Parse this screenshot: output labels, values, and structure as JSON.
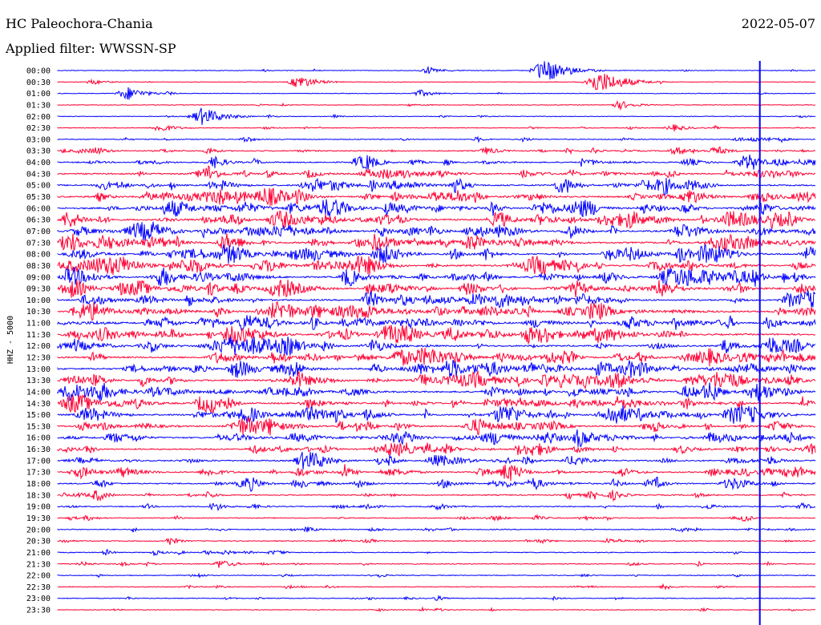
{
  "header": {
    "station": "HC Paleochora-Chania",
    "date": "2022-05-07",
    "filter": "Applied filter: WWSSN-SP"
  },
  "chart_data": {
    "type": "line",
    "title": "",
    "xlabel": "",
    "ylabel": "HHZ - 5000",
    "colors": [
      "#0000ff",
      "#ff0033"
    ],
    "rows": [
      "00:00",
      "00:30",
      "01:00",
      "01:30",
      "02:00",
      "02:30",
      "03:00",
      "03:30",
      "04:00",
      "04:30",
      "05:00",
      "05:30",
      "06:00",
      "06:30",
      "07:00",
      "07:30",
      "08:00",
      "08:30",
      "09:00",
      "09:30",
      "10:00",
      "10:30",
      "11:00",
      "11:30",
      "12:00",
      "12:30",
      "13:00",
      "13:30",
      "14:00",
      "14:30",
      "15:00",
      "15:30",
      "16:00",
      "16:30",
      "17:00",
      "17:30",
      "18:00",
      "18:30",
      "19:00",
      "19:30",
      "20:00",
      "20:30",
      "21:00",
      "21:30",
      "22:00",
      "22:30",
      "23:00",
      "23:30"
    ],
    "noise_level": [
      0.1,
      0.1,
      0.1,
      0.1,
      0.15,
      0.2,
      0.3,
      0.5,
      0.6,
      0.7,
      0.8,
      0.9,
      0.9,
      0.9,
      0.9,
      0.9,
      0.9,
      0.9,
      0.9,
      0.9,
      0.9,
      0.9,
      0.9,
      0.9,
      0.9,
      0.9,
      0.9,
      0.9,
      0.9,
      0.9,
      0.9,
      0.8,
      0.8,
      0.7,
      0.7,
      0.7,
      0.6,
      0.5,
      0.4,
      0.35,
      0.35,
      0.3,
      0.3,
      0.3,
      0.25,
      0.25,
      0.25,
      0.2
    ],
    "events": [
      {
        "row": 0,
        "minute": 19.4,
        "amp": 14
      },
      {
        "row": 0,
        "minute": 14.7,
        "amp": 4
      },
      {
        "row": 1,
        "minute": 21.5,
        "amp": 15
      },
      {
        "row": 1,
        "minute": 9.6,
        "amp": 8
      },
      {
        "row": 1,
        "minute": 1.4,
        "amp": 3
      },
      {
        "row": 2,
        "minute": 2.8,
        "amp": 8
      },
      {
        "row": 2,
        "minute": 14.4,
        "amp": 4
      },
      {
        "row": 3,
        "minute": 22.3,
        "amp": 5
      },
      {
        "row": 4,
        "minute": 5.8,
        "amp": 11
      },
      {
        "row": 5,
        "minute": 4.1,
        "amp": 5
      },
      {
        "row": 5,
        "minute": 24.4,
        "amp": 4
      },
      {
        "row": 0,
        "minute": 27.8,
        "amp": 100
      }
    ]
  }
}
